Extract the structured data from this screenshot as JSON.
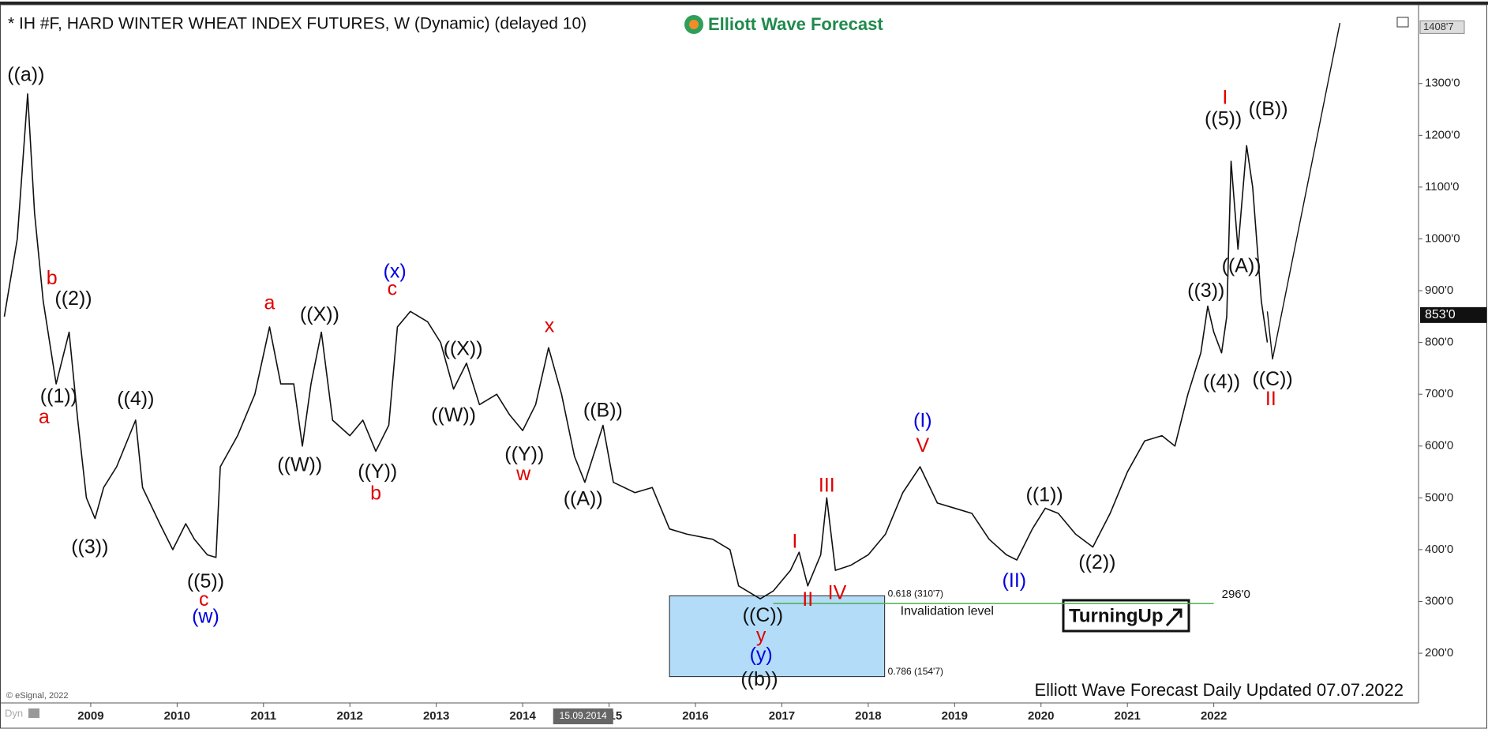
{
  "chart_data": {
    "type": "line",
    "title": "* IH #F, HARD WINTER WHEAT INDEX FUTURES, W (Dynamic) (delayed 10)",
    "logo": "Elliott Wave Forecast",
    "footer": "Elliott Wave Forecast Daily Updated 07.07.2022",
    "copyright": "© eSignal, 2022",
    "corner_tag": "Dyn",
    "brand_box": "TurningUp",
    "xlim": [
      2007.95,
      2024.37
    ],
    "ylim": [
      104,
      1443
    ],
    "xticks": [
      2009,
      2010,
      2011,
      2012,
      2013,
      2014,
      2015,
      2016,
      2017,
      2018,
      2019,
      2020,
      2021,
      2022
    ],
    "yticks": [
      {
        "value": 200,
        "label": "200'0"
      },
      {
        "value": 300,
        "label": "300'0"
      },
      {
        "value": 400,
        "label": "400'0"
      },
      {
        "value": 500,
        "label": "500'0"
      },
      {
        "value": 600,
        "label": "600'0"
      },
      {
        "value": 700,
        "label": "700'0"
      },
      {
        "value": 800,
        "label": "800'0"
      },
      {
        "value": 900,
        "label": "900'0"
      },
      {
        "value": 1000,
        "label": "1000'0"
      },
      {
        "value": 1100,
        "label": "1100'0"
      },
      {
        "value": 1200,
        "label": "1200'0"
      },
      {
        "value": 1300,
        "label": "1300'0"
      }
    ],
    "series": [
      {
        "color": "#111111",
        "x": [
          2008.0,
          2008.15,
          2008.27,
          2008.35,
          2008.45,
          2008.6,
          2008.75,
          2008.85,
          2008.95,
          2009.05,
          2009.15,
          2009.3,
          2009.52,
          2009.6,
          2009.8,
          2009.95,
          2010.1,
          2010.2,
          2010.35,
          2010.45,
          2010.5,
          2010.7,
          2010.9,
          2011.07,
          2011.2,
          2011.35,
          2011.45,
          2011.55,
          2011.67,
          2011.8,
          2012.0,
          2012.15,
          2012.3,
          2012.45,
          2012.55,
          2012.7,
          2012.9,
          2013.05,
          2013.2,
          2013.35,
          2013.5,
          2013.7,
          2013.85,
          2014.0,
          2014.15,
          2014.3,
          2014.45,
          2014.6,
          2014.72,
          2014.93,
          2015.05,
          2015.3,
          2015.5,
          2015.7,
          2015.9,
          2016.2,
          2016.4,
          2016.5,
          2016.75,
          2016.9,
          2017.1,
          2017.2,
          2017.3,
          2017.45,
          2017.52,
          2017.62,
          2017.8,
          2018.0,
          2018.2,
          2018.4,
          2018.6,
          2018.8,
          2019.0,
          2019.2,
          2019.4,
          2019.6,
          2019.72,
          2019.9,
          2020.05,
          2020.2,
          2020.4,
          2020.6,
          2020.8,
          2021.0,
          2021.2,
          2021.4,
          2021.55,
          2021.7,
          2021.85,
          2021.93,
          2022.0,
          2022.09,
          2022.15,
          2022.2,
          2022.28,
          2022.38,
          2022.45,
          2022.55,
          2022.62
        ],
        "values": [
          850,
          1000,
          1280,
          1050,
          880,
          720,
          820,
          650,
          500,
          460,
          520,
          560,
          650,
          520,
          450,
          400,
          450,
          420,
          390,
          385,
          560,
          620,
          700,
          830,
          720,
          720,
          600,
          720,
          820,
          650,
          620,
          650,
          590,
          640,
          830,
          860,
          840,
          800,
          710,
          760,
          680,
          700,
          660,
          630,
          680,
          790,
          700,
          580,
          530,
          640,
          530,
          510,
          520,
          440,
          430,
          420,
          400,
          330,
          305,
          320,
          360,
          395,
          330,
          390,
          500,
          360,
          370,
          390,
          430,
          510,
          560,
          490,
          480,
          470,
          420,
          390,
          380,
          440,
          480,
          470,
          430,
          405,
          470,
          550,
          610,
          620,
          600,
          700,
          780,
          870,
          820,
          780,
          850,
          1150,
          980,
          1180,
          1100,
          880,
          800
        ]
      }
    ],
    "projection": {
      "color": "#111111",
      "x": [
        2022.62,
        2022.68,
        2023.46
      ],
      "values": [
        860,
        768,
        1417
      ]
    },
    "fib_box": {
      "x": [
        2015.7,
        2018.19
      ],
      "top": 310.875,
      "bottom": 154.875,
      "top_label": "0.618 (310'7)",
      "bottom_label": "0.786 (154'7)",
      "color": "#b3dcf8"
    },
    "invalidation": {
      "value": 296,
      "label": "296'0",
      "text": "Invalidation level",
      "x": [
        2016.9,
        2022.0
      ],
      "color": "#4caf50"
    },
    "last_price": {
      "value": 853,
      "label": "853'0"
    },
    "high_marker": {
      "value": 1408.875,
      "label": "1408'7"
    },
    "cursor": {
      "x": 2014.7,
      "label": "15.09.2014"
    },
    "annotations": [
      {
        "text": "((a))",
        "x": 2008.25,
        "y": 1315,
        "color": "#111111"
      },
      {
        "text": "b",
        "x": 2008.55,
        "y": 922,
        "color": "#e00000"
      },
      {
        "text": "((2))",
        "x": 2008.8,
        "y": 883,
        "color": "#111111"
      },
      {
        "text": "((1))",
        "x": 2008.63,
        "y": 694,
        "color": "#111111"
      },
      {
        "text": "a",
        "x": 2008.46,
        "y": 654,
        "color": "#e00000"
      },
      {
        "text": "((4))",
        "x": 2009.52,
        "y": 689,
        "color": "#111111"
      },
      {
        "text": "((3))",
        "x": 2008.99,
        "y": 403,
        "color": "#111111"
      },
      {
        "text": "((5))",
        "x": 2010.33,
        "y": 337,
        "color": "#111111"
      },
      {
        "text": "c",
        "x": 2010.31,
        "y": 302,
        "color": "#e00000"
      },
      {
        "text": "(w)",
        "x": 2010.33,
        "y": 269,
        "color": "#0000e0"
      },
      {
        "text": "a",
        "x": 2011.07,
        "y": 874,
        "color": "#e00000"
      },
      {
        "text": "((X))",
        "x": 2011.65,
        "y": 852,
        "color": "#111111"
      },
      {
        "text": "((W))",
        "x": 2011.42,
        "y": 562,
        "color": "#111111"
      },
      {
        "text": "((Y))",
        "x": 2012.32,
        "y": 549,
        "color": "#111111"
      },
      {
        "text": "b",
        "x": 2012.3,
        "y": 507,
        "color": "#e00000"
      },
      {
        "text": "(x)",
        "x": 2012.52,
        "y": 935,
        "color": "#0000e0"
      },
      {
        "text": "c",
        "x": 2012.49,
        "y": 902,
        "color": "#e00000"
      },
      {
        "text": "((X))",
        "x": 2013.31,
        "y": 786,
        "color": "#111111"
      },
      {
        "text": "((W))",
        "x": 2013.2,
        "y": 658,
        "color": "#111111"
      },
      {
        "text": "x",
        "x": 2014.31,
        "y": 830,
        "color": "#e00000"
      },
      {
        "text": "((Y))",
        "x": 2014.02,
        "y": 582,
        "color": "#111111"
      },
      {
        "text": "w",
        "x": 2014.01,
        "y": 544,
        "color": "#e00000"
      },
      {
        "text": "((B))",
        "x": 2014.93,
        "y": 667,
        "color": "#111111"
      },
      {
        "text": "((A))",
        "x": 2014.7,
        "y": 496,
        "color": "#111111"
      },
      {
        "text": "((C))",
        "x": 2016.78,
        "y": 271,
        "color": "#111111"
      },
      {
        "text": "y",
        "x": 2016.76,
        "y": 232,
        "color": "#e00000"
      },
      {
        "text": "(y)",
        "x": 2016.76,
        "y": 195,
        "color": "#0000e0"
      },
      {
        "text": "((b))",
        "x": 2016.74,
        "y": 148,
        "color": "#111111"
      },
      {
        "text": "I",
        "x": 2017.15,
        "y": 414,
        "color": "#e00000"
      },
      {
        "text": "II",
        "x": 2017.3,
        "y": 302,
        "color": "#e00000"
      },
      {
        "text": "III",
        "x": 2017.52,
        "y": 522,
        "color": "#e00000"
      },
      {
        "text": "IV",
        "x": 2017.64,
        "y": 315,
        "color": "#e00000"
      },
      {
        "text": "(I)",
        "x": 2018.63,
        "y": 647,
        "color": "#0000e0"
      },
      {
        "text": "V",
        "x": 2018.63,
        "y": 599,
        "color": "#e00000"
      },
      {
        "text": "(II)",
        "x": 2019.69,
        "y": 338,
        "color": "#0000e0"
      },
      {
        "text": "((1))",
        "x": 2020.04,
        "y": 504,
        "color": "#111111"
      },
      {
        "text": "((2))",
        "x": 2020.65,
        "y": 373,
        "color": "#111111"
      },
      {
        "text": "((3))",
        "x": 2021.91,
        "y": 898,
        "color": "#111111"
      },
      {
        "text": "((4))",
        "x": 2022.09,
        "y": 722,
        "color": "#111111"
      },
      {
        "text": "I",
        "x": 2022.13,
        "y": 1271,
        "color": "#e00000"
      },
      {
        "text": "((5))",
        "x": 2022.11,
        "y": 1230,
        "color": "#111111"
      },
      {
        "text": "((B))",
        "x": 2022.63,
        "y": 1249,
        "color": "#111111"
      },
      {
        "text": "((A))",
        "x": 2022.32,
        "y": 946,
        "color": "#111111"
      },
      {
        "text": "((C))",
        "x": 2022.68,
        "y": 727,
        "color": "#111111"
      },
      {
        "text": "II",
        "x": 2022.66,
        "y": 689,
        "color": "#e00000"
      }
    ]
  }
}
